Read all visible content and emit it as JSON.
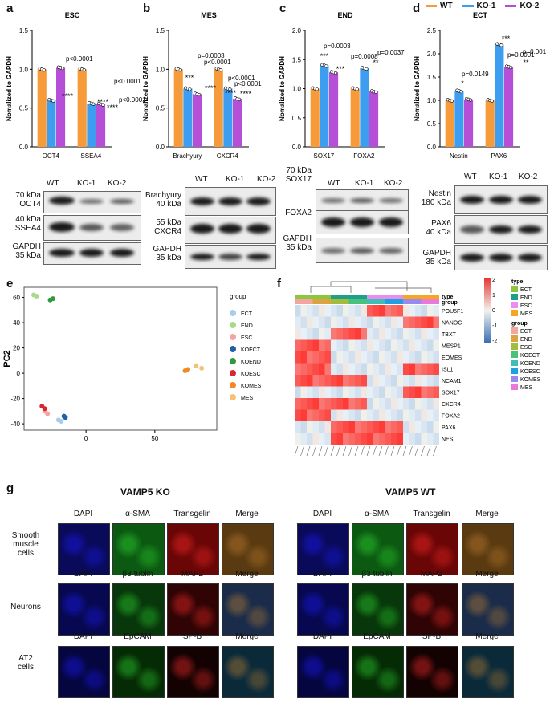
{
  "legend_top": {
    "items": [
      {
        "label": "WT",
        "color": "#f79a3a"
      },
      {
        "label": "KO-1",
        "color": "#3d9df0"
      },
      {
        "label": "KO-2",
        "color": "#b54fd8"
      }
    ]
  },
  "ylabel": "Nomalized to GAPDH",
  "panels_bar": [
    {
      "letter": "a",
      "title": "ESC"
    },
    {
      "letter": "b",
      "title": "MES"
    },
    {
      "letter": "c",
      "title": "END"
    },
    {
      "letter": "d",
      "title": "ECT"
    }
  ],
  "chart_data": [
    {
      "type": "bar",
      "title": "ESC",
      "ylabel": "Nomalized to GAPDH",
      "ylim": [
        0,
        1.5
      ],
      "yticks": [
        "0.0",
        "0.5",
        "1.0",
        "1.5"
      ],
      "categories": [
        "OCT4",
        "SSEA4"
      ],
      "series": [
        {
          "name": "WT",
          "values": [
            1.0,
            1.0
          ]
        },
        {
          "name": "KO-1",
          "values": [
            0.6,
            0.56
          ]
        },
        {
          "name": "KO-2",
          "values": [
            1.02,
            0.55
          ]
        }
      ],
      "annotations": [
        "p<0.0001",
        "****",
        "p<0.0001",
        "p<0.0001",
        "****",
        "****"
      ]
    },
    {
      "type": "bar",
      "title": "MES",
      "ylabel": "Nomalized to GAPDH",
      "ylim": [
        0,
        1.5
      ],
      "yticks": [
        "0.0",
        "0.5",
        "1.0",
        "1.5"
      ],
      "categories": [
        "Brachyury",
        "CXCR4"
      ],
      "series": [
        {
          "name": "WT",
          "values": [
            1.0,
            1.0
          ]
        },
        {
          "name": "KO-1",
          "values": [
            0.75,
            0.75
          ]
        },
        {
          "name": "KO-2",
          "values": [
            0.68,
            0.62
          ]
        }
      ],
      "annotations": [
        "p=0.0003",
        "p<0.0001",
        "***",
        "****",
        "p<0.0001",
        "p<0.0001",
        "****",
        "****"
      ]
    },
    {
      "type": "bar",
      "title": "END",
      "ylabel": "Nomalized to GAPDH",
      "ylim": [
        0,
        2.0
      ],
      "yticks": [
        "0.0",
        "0.5",
        "1.0",
        "1.5",
        "2.0"
      ],
      "categories": [
        "SOX17",
        "FOXA2"
      ],
      "series": [
        {
          "name": "WT",
          "values": [
            1.0,
            1.0
          ]
        },
        {
          "name": "KO-1",
          "values": [
            1.4,
            1.35
          ]
        },
        {
          "name": "KO-2",
          "values": [
            1.28,
            0.95
          ]
        }
      ],
      "annotations": [
        "p=0.0003",
        "***",
        "p=0.0008",
        "***",
        "p=0.0037",
        "**"
      ]
    },
    {
      "type": "bar",
      "title": "ECT",
      "ylabel": "Nomalized to GAPDH",
      "ylim": [
        0,
        2.5
      ],
      "yticks": [
        "0.0",
        "0.5",
        "1.0",
        "1.5",
        "2.0",
        "2.5"
      ],
      "categories": [
        "Nestin",
        "PAX6"
      ],
      "series": [
        {
          "name": "WT",
          "values": [
            1.0,
            1.0
          ]
        },
        {
          "name": "KO-1",
          "values": [
            1.2,
            2.2
          ]
        },
        {
          "name": "KO-2",
          "values": [
            1.02,
            1.72
          ]
        }
      ],
      "annotations": [
        "p=0.0149",
        "*",
        "p=0.0001",
        "***",
        "p=0.001",
        "**"
      ]
    },
    {
      "type": "scatter",
      "title": "",
      "xlabel": "PC1",
      "ylabel": "PC2",
      "xlim": [
        -45,
        95
      ],
      "ylim": [
        -45,
        68
      ],
      "xticks": [
        "0",
        "50"
      ],
      "yticks": [
        "-40",
        "-20",
        "0",
        "20",
        "40",
        "60"
      ],
      "legend_title": "group",
      "series": [
        {
          "name": "ECT",
          "color": "#a9cde8",
          "points": [
            [
              -20,
              -37
            ],
            [
              -18,
              -38
            ]
          ]
        },
        {
          "name": "END",
          "color": "#a8d98a",
          "points": [
            [
              -38,
              62
            ],
            [
              -36,
              61
            ]
          ]
        },
        {
          "name": "ESC",
          "color": "#f4a4a4",
          "points": [
            [
              -30,
              -30
            ],
            [
              -28,
              -32
            ]
          ]
        },
        {
          "name": "KOECT",
          "color": "#1f5fa8",
          "points": [
            [
              -16,
              -34
            ],
            [
              -15,
              -35
            ]
          ]
        },
        {
          "name": "KOEND",
          "color": "#2e9a3a",
          "points": [
            [
              -26,
              58
            ],
            [
              -24,
              59
            ]
          ]
        },
        {
          "name": "KOESC",
          "color": "#d9282b",
          "points": [
            [
              -32,
              -26
            ],
            [
              -30,
              -28
            ]
          ]
        },
        {
          "name": "KOMES",
          "color": "#f08a24",
          "points": [
            [
              72,
              2
            ],
            [
              74,
              3
            ]
          ]
        },
        {
          "name": "MES",
          "color": "#f6c07a",
          "points": [
            [
              80,
              6
            ],
            [
              84,
              4
            ]
          ]
        }
      ]
    },
    {
      "type": "heatmap",
      "genes": [
        "POU5F1",
        "NANOG",
        "TBXT",
        "MESP1",
        "EOMES",
        "ISL1",
        "NCAM1",
        "SOX17",
        "CXCR4",
        "FOXA2",
        "PAX6",
        "NES"
      ],
      "scale": [
        "2",
        "1",
        "0",
        "-1",
        "-2"
      ],
      "legend_type": {
        "title": "type",
        "items": [
          {
            "label": "ECT",
            "color": "#8cc63e"
          },
          {
            "label": "END",
            "color": "#1f9e89"
          },
          {
            "label": "ESC",
            "color": "#e98ef0"
          },
          {
            "label": "MES",
            "color": "#f5a623"
          }
        ]
      },
      "legend_group": {
        "title": "group",
        "items": [
          {
            "label": "ECT",
            "color": "#f5a5a0"
          },
          {
            "label": "END",
            "color": "#d9a441"
          },
          {
            "label": "ESC",
            "color": "#a4bc3c"
          },
          {
            "label": "KOECT",
            "color": "#48c27a"
          },
          {
            "label": "KOEND",
            "color": "#3dbfb8"
          },
          {
            "label": "KOESC",
            "color": "#1fa0e0"
          },
          {
            "label": "KOMES",
            "color": "#9a8af0"
          },
          {
            "label": "MES",
            "color": "#ea7ad8"
          }
        ]
      },
      "row_labels": [
        "type",
        "group"
      ]
    }
  ],
  "western": {
    "a": {
      "wt": "WT",
      "ko1": "KO-1",
      "ko2": "KO-2",
      "l1": "70 kDa",
      "l1b": "OCT4",
      "l2": "40 kDa",
      "l2b": "SSEA4",
      "l3": "GAPDH",
      "l3b": "35 kDa"
    },
    "b": {
      "wt": "WT",
      "ko1": "KO-1",
      "ko2": "KO-2",
      "l1": "Brachyury",
      "l1b": "40 kDa",
      "l2": "55 kDa",
      "l2b": "CXCR4",
      "l3": "GAPDH",
      "l3b": "35 kDa"
    },
    "c": {
      "wt": "WT",
      "ko1": "KO-1",
      "ko2": "KO-2",
      "l1": "70 kDa",
      "l1b": "SOX17",
      "l2": "FOXA2",
      "l3": "GAPDH",
      "l3b": "35 kDa"
    },
    "d": {
      "wt": "WT",
      "ko1": "KO-1",
      "ko2": "KO-2",
      "l1": "Nestin",
      "l1b": "180 kDa",
      "l2": "PAX6",
      "l2b": "40 kDa",
      "l3": "GAPDH",
      "l3b": "35 kDa"
    }
  },
  "panel_e": {
    "letter": "e"
  },
  "panel_f": {
    "letter": "f"
  },
  "panel_g": {
    "letter": "g",
    "ko_title": "VAMP5 KO",
    "wt_title": "VAMP5 WT",
    "rows": [
      {
        "label": "Smooth\nmuscle\ncells",
        "channels": [
          "DAPI",
          "α-SMA",
          "Transgelin",
          "Merge"
        ]
      },
      {
        "label": "Neurons",
        "channels": [
          "DAPI",
          "β3 tublin",
          "MAP2",
          "Merge"
        ]
      },
      {
        "label": "AT2\ncells",
        "channels": [
          "DAPI",
          "EpCAM",
          "SP-B",
          "Merge"
        ]
      }
    ]
  }
}
